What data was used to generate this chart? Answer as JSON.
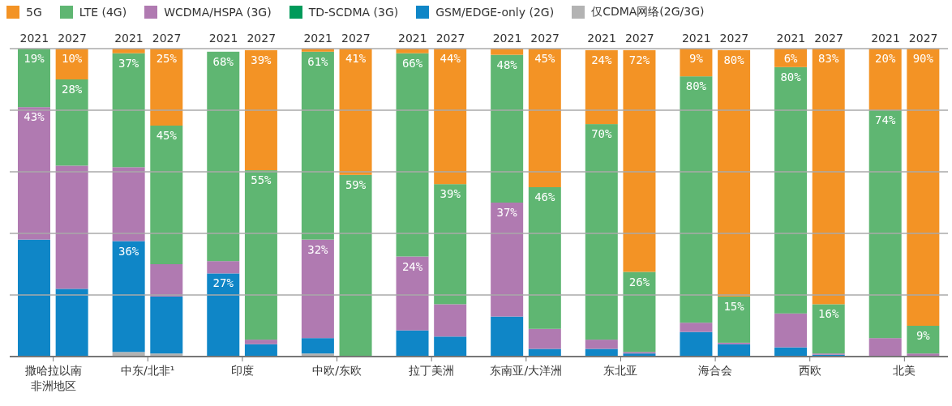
{
  "chart_data": {
    "type": "bar",
    "stacked": true,
    "categories": [
      "2021",
      "2027",
      "2021",
      "2027",
      "2021",
      "2027",
      "2021",
      "2027",
      "2021",
      "2027",
      "2021",
      "2027",
      "2021",
      "2027",
      "2021",
      "2027",
      "2021",
      "2027",
      "2021",
      "2027"
    ],
    "annotations": [
      "撒哈拉以南非洲地区",
      "中东/北非¹",
      "印度",
      "中欧/东欧",
      "拉丁美洲",
      "东南亚/大洋洲",
      "东北亚",
      "海合会",
      "西欧",
      "北美"
    ],
    "ylim": [
      0,
      100
    ],
    "yticks": [
      {
        "value": 0,
        "label": null
      },
      {
        "value": 20,
        "label": null
      },
      {
        "value": 40,
        "label": null
      },
      {
        "value": 60,
        "label": null
      },
      {
        "value": 80,
        "label": null
      },
      {
        "value": 100,
        "label": null
      }
    ],
    "tick_labels": "x",
    "grid": "y",
    "legend": "top",
    "series": [
      {
        "name": "仅CDMA网络(2G/3G)",
        "color": "#b3b3b3",
        "values": [
          0,
          0,
          1.5,
          1,
          0,
          0,
          1,
          0,
          0,
          0,
          0,
          0,
          0,
          0,
          0,
          0,
          0,
          0,
          0,
          0
        ]
      },
      {
        "name": "GSM/EDGE-only (2G)",
        "color": "#0f86c7",
        "values": [
          38,
          22,
          36,
          18.5,
          27,
          4,
          5,
          0,
          8.5,
          6.5,
          13,
          2.5,
          2.5,
          1,
          8,
          4,
          3,
          0.6,
          0,
          0
        ],
        "value_labels": [
          null,
          null,
          "36%",
          null,
          "27%",
          null,
          null,
          null,
          null,
          null,
          null,
          null,
          null,
          null,
          null,
          null,
          null,
          null,
          null,
          null
        ]
      },
      {
        "name": "TD-SCDMA (3G)",
        "color": "#009a5a",
        "values": [
          0,
          0,
          0,
          0,
          0,
          0,
          0,
          0,
          0,
          0,
          0,
          0,
          0,
          0,
          0,
          0,
          0,
          0,
          0,
          0
        ]
      },
      {
        "name": "WCDMA/HSPA (3G)",
        "color": "#b07ab1",
        "values": [
          43,
          40,
          24,
          10.5,
          4,
          1.5,
          32,
          0,
          24,
          10.5,
          37,
          6.5,
          3,
          0.5,
          3,
          0.5,
          11,
          0.4,
          6,
          1
        ],
        "value_labels": [
          "43%",
          null,
          null,
          null,
          null,
          null,
          "32%",
          null,
          "24%",
          null,
          "37%",
          null,
          null,
          null,
          null,
          null,
          null,
          null,
          null,
          null
        ]
      },
      {
        "name": "LTE (4G)",
        "color": "#5fb672",
        "values": [
          19,
          28,
          37,
          45,
          68,
          55,
          61,
          59,
          66,
          39,
          48,
          46,
          70,
          26,
          80,
          15,
          80,
          16,
          74,
          9
        ],
        "value_labels": [
          "19%",
          "28%",
          "37%",
          "45%",
          "68%",
          "55%",
          "61%",
          "59%",
          "66%",
          "39%",
          "48%",
          "46%",
          "70%",
          "26%",
          "80%",
          "15%",
          "80%",
          "16%",
          "74%",
          "9%"
        ]
      },
      {
        "name": "5G",
        "color": "#f39325",
        "values": [
          0,
          10,
          1.5,
          25,
          0,
          39,
          1,
          41,
          1.5,
          44,
          2,
          45,
          24,
          72,
          9,
          80,
          6,
          83,
          20,
          90
        ],
        "value_labels": [
          null,
          "10%",
          null,
          "25%",
          null,
          "39%",
          null,
          "41%",
          null,
          "44%",
          null,
          "45%",
          "24%",
          "72%",
          "9%",
          "80%",
          "6%",
          "83%",
          "20%",
          "90%"
        ]
      }
    ]
  }
}
